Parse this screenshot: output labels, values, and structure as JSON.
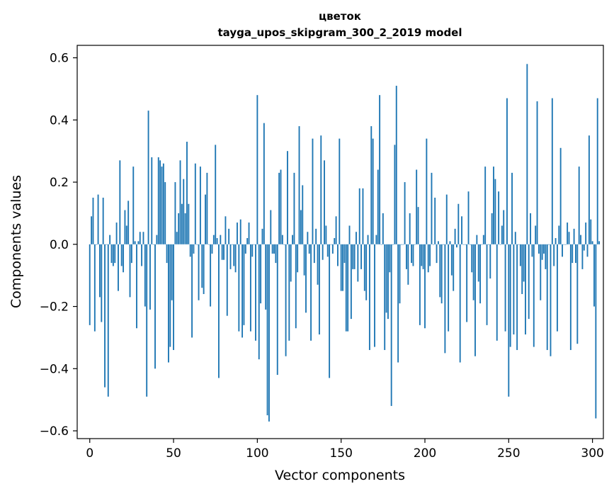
{
  "colors": {
    "bar": "#1f77b4",
    "axis": "#000000",
    "background": "#ffffff"
  },
  "chart_data": {
    "type": "bar",
    "title": "цветок",
    "subtitle": "tayga_upos_skipgram_300_2_2019 model",
    "xlabel": "Vector components",
    "ylabel": "Components values",
    "xlim": [
      -7.5,
      306.5
    ],
    "ylim": [
      -0.625,
      0.64
    ],
    "x_ticks": [
      0,
      50,
      100,
      150,
      200,
      250,
      300
    ],
    "y_ticks": [
      -0.6,
      -0.4,
      -0.2,
      0.0,
      0.2,
      0.4,
      0.6
    ],
    "x_tick_labels": [
      "0",
      "50",
      "100",
      "150",
      "200",
      "250",
      "300"
    ],
    "y_tick_labels": [
      "−0.6",
      "−0.4",
      "−0.2",
      "0.0",
      "0.2",
      "0.4",
      "0.6"
    ],
    "grid": false,
    "values": [
      -0.26,
      0.09,
      0.15,
      -0.28,
      0.0,
      0.16,
      -0.17,
      -0.25,
      0.15,
      -0.46,
      0.0,
      -0.49,
      0.03,
      -0.06,
      -0.07,
      -0.06,
      0.07,
      -0.15,
      0.27,
      -0.07,
      -0.09,
      0.11,
      0.06,
      0.14,
      -0.17,
      -0.06,
      0.25,
      0.01,
      -0.27,
      0.01,
      0.04,
      -0.07,
      0.04,
      -0.2,
      -0.49,
      0.43,
      -0.21,
      0.28,
      0.0,
      -0.4,
      0.03,
      0.28,
      0.27,
      0.25,
      0.26,
      0.2,
      -0.06,
      -0.38,
      -0.33,
      -0.18,
      -0.34,
      0.2,
      0.04,
      0.1,
      0.27,
      0.13,
      0.21,
      0.1,
      0.33,
      0.13,
      -0.04,
      -0.3,
      -0.03,
      0.26,
      0.0,
      -0.18,
      0.25,
      -0.14,
      -0.16,
      0.16,
      0.23,
      0.0,
      -0.2,
      -0.03,
      0.03,
      0.32,
      0.02,
      -0.43,
      0.03,
      -0.05,
      -0.05,
      0.09,
      -0.23,
      0.05,
      -0.08,
      0.0,
      -0.07,
      -0.09,
      0.07,
      -0.28,
      0.08,
      -0.3,
      -0.26,
      -0.03,
      0.02,
      0.07,
      -0.28,
      -0.04,
      0.0,
      -0.31,
      0.48,
      -0.37,
      -0.19,
      0.05,
      0.39,
      -0.21,
      -0.55,
      -0.57,
      0.11,
      -0.03,
      -0.03,
      -0.06,
      -0.42,
      0.23,
      0.24,
      0.03,
      0.0,
      -0.36,
      0.3,
      -0.31,
      -0.12,
      0.03,
      0.23,
      -0.27,
      -0.09,
      0.38,
      0.11,
      0.19,
      -0.1,
      -0.22,
      0.04,
      -0.03,
      -0.31,
      0.34,
      -0.06,
      0.05,
      -0.13,
      -0.29,
      0.35,
      -0.05,
      0.27,
      0.06,
      -0.04,
      -0.43,
      0.0,
      -0.03,
      0.02,
      0.09,
      -0.07,
      0.34,
      -0.15,
      -0.15,
      -0.06,
      -0.28,
      -0.28,
      0.06,
      -0.24,
      -0.08,
      -0.08,
      0.04,
      -0.12,
      0.18,
      -0.08,
      0.18,
      -0.15,
      -0.18,
      0.03,
      -0.34,
      0.38,
      0.34,
      -0.33,
      0.03,
      0.24,
      0.48,
      0.0,
      0.1,
      -0.34,
      -0.22,
      -0.24,
      -0.09,
      -0.52,
      0.0,
      0.32,
      0.51,
      -0.38,
      -0.19,
      0.0,
      0.0,
      0.2,
      -0.08,
      -0.13,
      0.1,
      -0.06,
      -0.07,
      0.0,
      0.24,
      0.12,
      -0.26,
      -0.07,
      -0.08,
      -0.27,
      0.34,
      -0.09,
      -0.07,
      0.23,
      0.0,
      0.15,
      -0.06,
      0.01,
      -0.17,
      -0.19,
      0.0,
      -0.35,
      0.16,
      -0.28,
      0.01,
      -0.1,
      -0.15,
      0.05,
      -0.01,
      0.13,
      -0.38,
      0.09,
      0.0,
      0.0,
      -0.25,
      0.17,
      0.0,
      -0.09,
      -0.18,
      -0.36,
      0.03,
      -0.12,
      -0.19,
      0.0,
      0.03,
      0.25,
      -0.26,
      0.0,
      -0.11,
      0.1,
      0.25,
      0.21,
      -0.31,
      0.17,
      0.0,
      0.06,
      0.11,
      -0.28,
      0.47,
      -0.49,
      -0.33,
      0.23,
      -0.29,
      0.04,
      -0.34,
      0.0,
      -0.07,
      -0.16,
      -0.12,
      -0.29,
      0.58,
      -0.24,
      0.1,
      -0.04,
      -0.33,
      0.06,
      0.46,
      -0.03,
      -0.18,
      -0.05,
      -0.03,
      -0.08,
      -0.34,
      0.0,
      -0.36,
      0.47,
      -0.07,
      0.02,
      -0.28,
      0.06,
      0.31,
      -0.04,
      0.0,
      0.0,
      0.07,
      0.04,
      -0.34,
      -0.06,
      0.05,
      -0.06,
      -0.32,
      0.25,
      0.03,
      -0.08,
      -0.02,
      0.07,
      -0.04,
      0.35,
      0.08,
      0.01,
      -0.2,
      -0.56,
      0.47,
      0.01
    ]
  }
}
